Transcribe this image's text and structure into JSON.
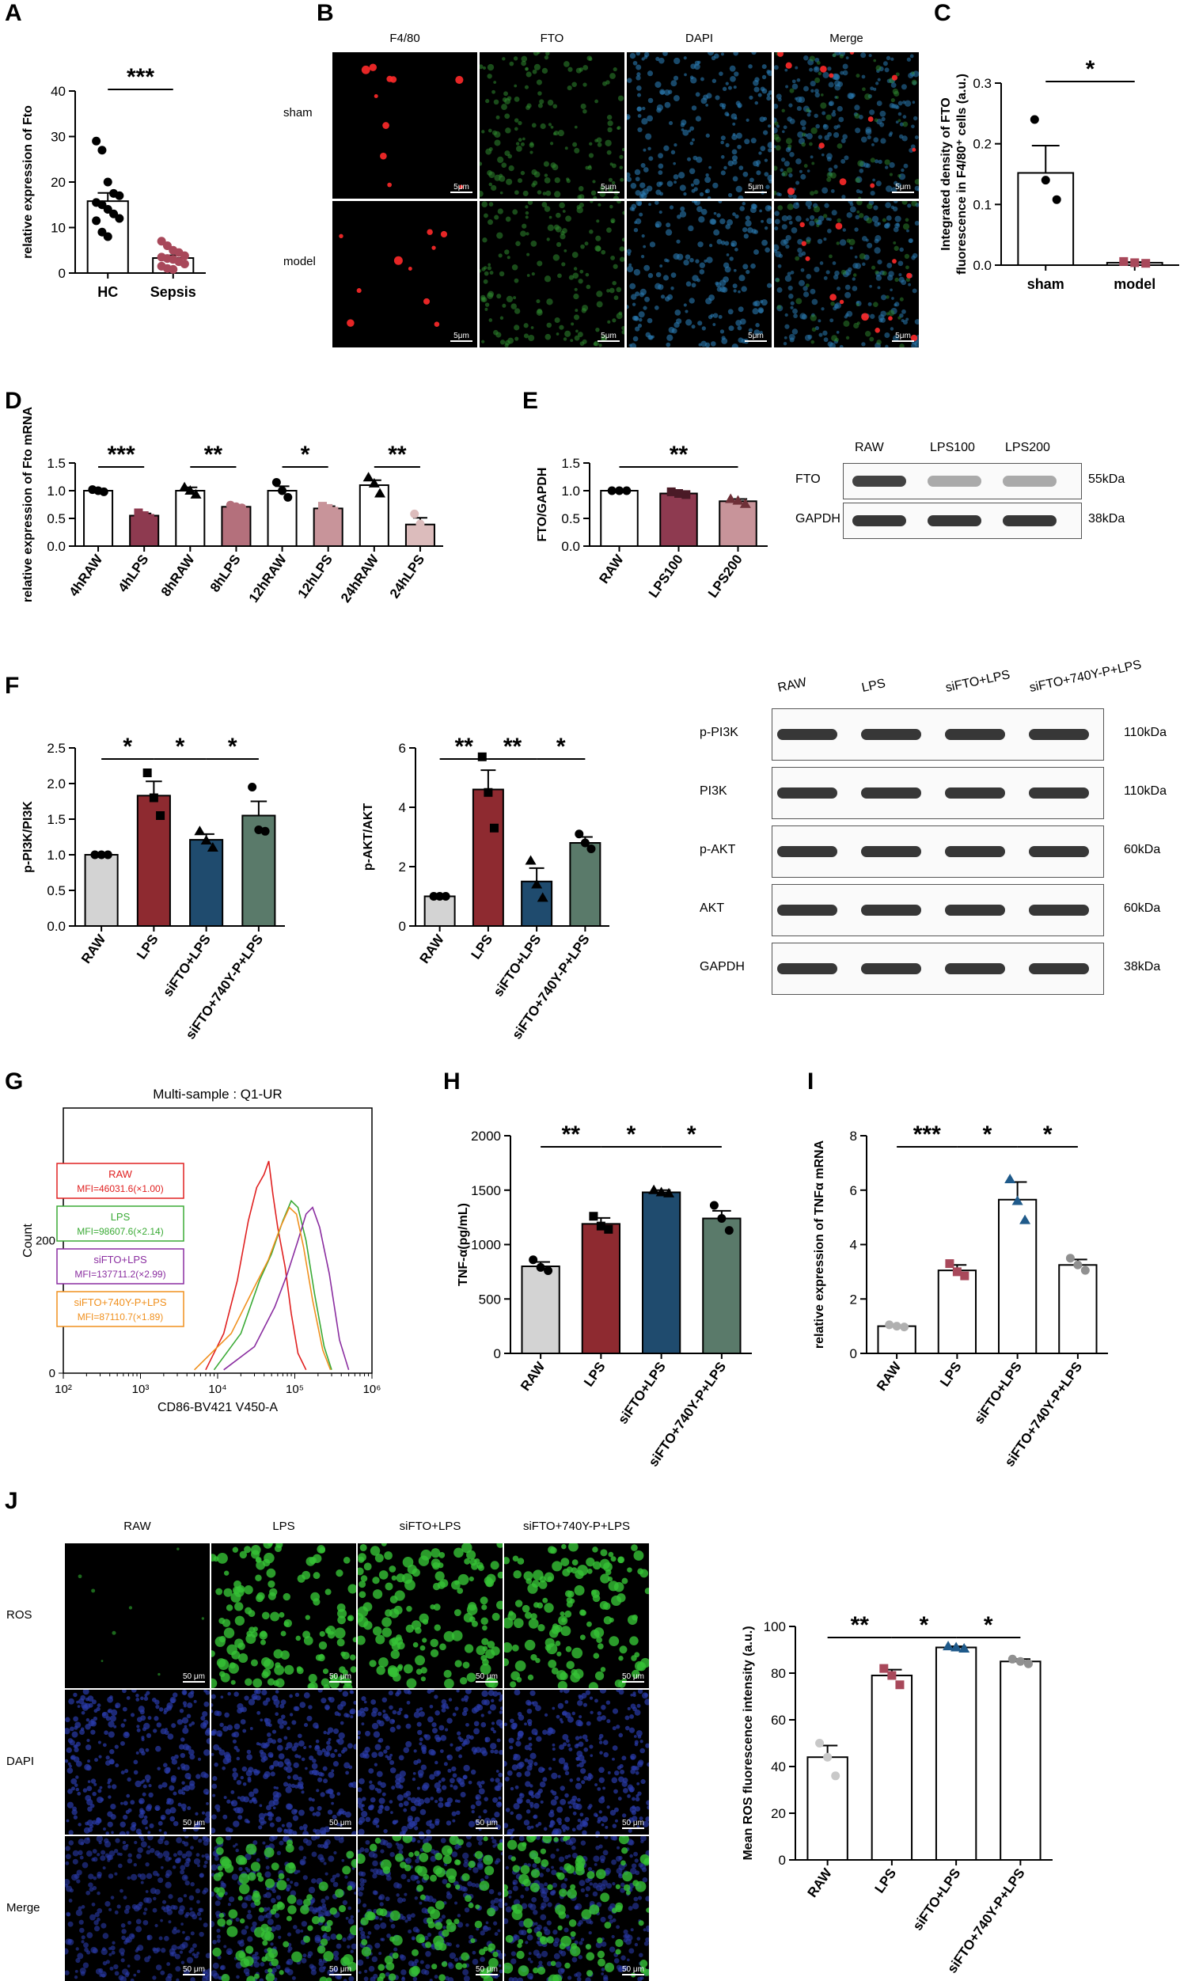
{
  "panels": {
    "A": "A",
    "B": "B",
    "C": "C",
    "D": "D",
    "E": "E",
    "F": "F",
    "G": "G",
    "H": "H",
    "I": "I",
    "J": "J"
  },
  "chart_data": [
    {
      "id": "A",
      "type": "bar",
      "title": "",
      "ylabel": "relative expression of Fto",
      "ylim": [
        0,
        40
      ],
      "yticks": [
        0,
        10,
        20,
        30,
        40
      ],
      "categories": [
        "HC",
        "Sepsis"
      ],
      "values": [
        15.8,
        3.3
      ],
      "errors": [
        1.8,
        0.6
      ],
      "bar_colors": [
        "#ffffff",
        "#ffffff"
      ],
      "point_colors": [
        "#000000",
        "#a8485a"
      ],
      "points": [
        [
          29,
          27,
          20,
          17.5,
          17,
          15.5,
          15,
          14,
          13,
          12,
          11.5,
          9,
          8
        ],
        [
          7,
          6,
          5,
          4.5,
          3.8,
          3.5,
          3.2,
          3,
          2.5,
          2,
          1.5,
          1,
          0.8
        ]
      ],
      "significance": [
        {
          "from": 0,
          "to": 1,
          "label": "***"
        }
      ],
      "rotate_ticks": false
    },
    {
      "id": "C",
      "type": "bar",
      "title": "",
      "ylabel": "Integrated density of FTO fluorescence in F4/80⁺ cells (a.u.)",
      "ylim": [
        0,
        0.3
      ],
      "yticks": [
        0.0,
        0.1,
        0.2,
        0.3
      ],
      "categories": [
        "sham",
        "model"
      ],
      "values": [
        0.152,
        0.004
      ],
      "errors": [
        0.045,
        0.001
      ],
      "bar_colors": [
        "#ffffff",
        "#ffffff"
      ],
      "point_colors": [
        "#000000",
        "#a8485a"
      ],
      "points": [
        [
          0.24,
          0.14,
          0.108
        ],
        [
          0.006,
          0.004,
          0.003
        ]
      ],
      "significance": [
        {
          "from": 0,
          "to": 1,
          "label": "*"
        }
      ],
      "rotate_ticks": false
    },
    {
      "id": "D",
      "type": "bar",
      "title": "",
      "ylabel": "relative expression of Fto mRNA",
      "ylim": [
        0,
        1.5
      ],
      "yticks": [
        0.0,
        0.5,
        1.0,
        1.5
      ],
      "categories": [
        "4hRAW",
        "4hLPS",
        "8hRAW",
        "8hLPS",
        "12hRAW",
        "12hLPS",
        "24hRAW",
        "24hLPS"
      ],
      "values": [
        1.0,
        0.55,
        1.0,
        0.71,
        1.0,
        0.68,
        1.1,
        0.39
      ],
      "errors": [
        0.02,
        0.04,
        0.06,
        0.03,
        0.08,
        0.04,
        0.09,
        0.12
      ],
      "bar_colors": [
        "#ffffff",
        "#8e3a50",
        "#ffffff",
        "#b4707c",
        "#ffffff",
        "#c8949a",
        "#ffffff",
        "#dcbcbc"
      ],
      "point_colors": [
        "#000000",
        "#8e3a50",
        "#000000",
        "#b4707c",
        "#000000",
        "#c8949a",
        "#000000",
        "#dcbcbc"
      ],
      "points": [
        [
          1.02,
          1.0,
          0.98
        ],
        [
          0.6,
          0.55,
          0.5
        ],
        [
          1.06,
          1.0,
          0.93
        ],
        [
          0.74,
          0.71,
          0.69
        ],
        [
          1.15,
          1.0,
          0.88
        ],
        [
          0.72,
          0.68,
          0.63
        ],
        [
          1.24,
          1.13,
          0.95
        ],
        [
          0.58,
          0.4,
          0.2
        ]
      ],
      "significance": [
        {
          "from": 0,
          "to": 1,
          "label": "***"
        },
        {
          "from": 2,
          "to": 3,
          "label": "**"
        },
        {
          "from": 4,
          "to": 5,
          "label": "*"
        },
        {
          "from": 6,
          "to": 7,
          "label": "**"
        }
      ],
      "rotate_ticks": true
    },
    {
      "id": "E",
      "type": "bar",
      "title": "",
      "ylabel": "FTO/GAPDH",
      "ylim": [
        0,
        1.5
      ],
      "yticks": [
        0.0,
        0.5,
        1.0,
        1.5
      ],
      "categories": [
        "RAW",
        "LPS100",
        "LPS200"
      ],
      "values": [
        1.0,
        0.95,
        0.81
      ],
      "errors": [
        0.0,
        0.03,
        0.04
      ],
      "bar_colors": [
        "#ffffff",
        "#8e3a50",
        "#c8949a"
      ],
      "point_colors": [
        "#000000",
        "#4a1a26",
        "#6e3038"
      ],
      "points": [
        [
          1.0,
          1.0,
          1.0
        ],
        [
          0.98,
          0.95,
          0.93
        ],
        [
          0.85,
          0.82,
          0.76
        ]
      ],
      "significance": [
        {
          "from": 0,
          "to": 2,
          "label": "**"
        }
      ],
      "rotate_ticks": true
    },
    {
      "id": "F1",
      "type": "bar",
      "title": "",
      "ylabel": "p-PI3K/PI3K",
      "ylim": [
        0,
        2.5
      ],
      "yticks": [
        0.0,
        0.5,
        1.0,
        1.5,
        2.0,
        2.5
      ],
      "categories": [
        "RAW",
        "LPS",
        "siFTO+LPS",
        "siFTO+740Y-P+LPS"
      ],
      "values": [
        1.0,
        1.83,
        1.21,
        1.55
      ],
      "errors": [
        0.0,
        0.2,
        0.08,
        0.2
      ],
      "bar_colors": [
        "#d3d3d3",
        "#8e2a30",
        "#1f4b6e",
        "#5a7a6a"
      ],
      "point_colors": [
        "#000000",
        "#000000",
        "#000000",
        "#000000"
      ],
      "points": [
        [
          1.0,
          1.0,
          1.0
        ],
        [
          2.15,
          1.8,
          1.55
        ],
        [
          1.33,
          1.2,
          1.1
        ],
        [
          1.95,
          1.35,
          1.33
        ]
      ],
      "significance": [
        {
          "from": 0,
          "to": 1,
          "label": "*"
        },
        {
          "from": 1,
          "to": 2,
          "label": "*"
        },
        {
          "from": 2,
          "to": 3,
          "label": "*"
        }
      ],
      "rotate_ticks": true
    },
    {
      "id": "F2",
      "type": "bar",
      "title": "",
      "ylabel": "p-AKT/AKT",
      "ylim": [
        0,
        6
      ],
      "yticks": [
        0,
        2,
        4,
        6
      ],
      "categories": [
        "RAW",
        "LPS",
        "siFTO+LPS",
        "siFTO+740Y-P+LPS"
      ],
      "values": [
        1.0,
        4.6,
        1.5,
        2.8
      ],
      "errors": [
        0.0,
        0.65,
        0.45,
        0.2
      ],
      "bar_colors": [
        "#d3d3d3",
        "#8e2a30",
        "#1f4b6e",
        "#5a7a6a"
      ],
      "point_colors": [
        "#000000",
        "#000000",
        "#000000",
        "#000000"
      ],
      "points": [
        [
          1.0,
          1.0,
          1.0
        ],
        [
          5.7,
          4.5,
          3.3
        ],
        [
          2.2,
          1.4,
          0.95
        ],
        [
          3.1,
          2.8,
          2.6
        ]
      ],
      "significance": [
        {
          "from": 0,
          "to": 1,
          "label": "**"
        },
        {
          "from": 1,
          "to": 2,
          "label": "**"
        },
        {
          "from": 2,
          "to": 3,
          "label": "*"
        }
      ],
      "rotate_ticks": true
    },
    {
      "id": "H",
      "type": "bar",
      "title": "",
      "ylabel": "TNF-α(pg/mL)",
      "ylim": [
        0,
        2000
      ],
      "yticks": [
        0,
        500,
        1000,
        1500,
        2000
      ],
      "categories": [
        "RAW",
        "LPS",
        "siFTO+LPS",
        "siFTO+740Y-P+LPS"
      ],
      "values": [
        800,
        1190,
        1480,
        1240
      ],
      "errors": [
        40,
        55,
        20,
        70
      ],
      "bar_colors": [
        "#d3d3d3",
        "#8e2a30",
        "#1f4b6e",
        "#5a7a6a"
      ],
      "point_colors": [
        "#000000",
        "#000000",
        "#000000",
        "#000000"
      ],
      "points": [
        [
          860,
          790,
          760
        ],
        [
          1260,
          1170,
          1140
        ],
        [
          1500,
          1480,
          1470
        ],
        [
          1360,
          1240,
          1130
        ]
      ],
      "significance": [
        {
          "from": 0,
          "to": 1,
          "label": "**"
        },
        {
          "from": 1,
          "to": 2,
          "label": "*"
        },
        {
          "from": 2,
          "to": 3,
          "label": "*"
        }
      ],
      "rotate_ticks": true
    },
    {
      "id": "I",
      "type": "bar",
      "title": "",
      "ylabel": "relative expression of TNFα mRNA",
      "ylim": [
        0,
        8
      ],
      "yticks": [
        0,
        2,
        4,
        6,
        8
      ],
      "categories": [
        "RAW",
        "LPS",
        "siFTO+LPS",
        "siFTO+740Y-P+LPS"
      ],
      "values": [
        1.0,
        3.05,
        5.65,
        3.25
      ],
      "errors": [
        0.03,
        0.2,
        0.65,
        0.2
      ],
      "bar_colors": [
        "#ffffff",
        "#ffffff",
        "#ffffff",
        "#ffffff"
      ],
      "point_colors": [
        "#b0b0b0",
        "#a8485a",
        "#1f5a8a",
        "#909090"
      ],
      "points": [
        [
          1.05,
          1.0,
          0.97
        ],
        [
          3.3,
          3.0,
          2.85
        ],
        [
          6.4,
          5.6,
          4.9
        ],
        [
          3.5,
          3.25,
          3.05
        ]
      ],
      "significance": [
        {
          "from": 0,
          "to": 1,
          "label": "***"
        },
        {
          "from": 1,
          "to": 2,
          "label": "*"
        },
        {
          "from": 2,
          "to": 3,
          "label": "*"
        }
      ],
      "rotate_ticks": true
    },
    {
      "id": "J",
      "type": "bar",
      "title": "",
      "ylabel": "Mean ROS fluorescence intensity (a.u.)",
      "ylim": [
        0,
        100
      ],
      "yticks": [
        0,
        20,
        40,
        60,
        80,
        100
      ],
      "categories": [
        "RAW",
        "LPS",
        "siFTO+LPS",
        "siFTO+740Y-P+LPS"
      ],
      "values": [
        44,
        79,
        91,
        85
      ],
      "errors": [
        5,
        2.5,
        0.5,
        1
      ],
      "bar_colors": [
        "#ffffff",
        "#ffffff",
        "#ffffff",
        "#ffffff"
      ],
      "point_colors": [
        "#c8c8c8",
        "#a8485a",
        "#1f5a8a",
        "#909090"
      ],
      "points": [
        [
          50,
          44,
          36
        ],
        [
          82,
          79,
          75
        ],
        [
          91.5,
          91,
          90.5
        ],
        [
          86,
          85,
          84
        ]
      ],
      "significance": [
        {
          "from": 0,
          "to": 1,
          "label": "**"
        },
        {
          "from": 1,
          "to": 2,
          "label": "*"
        },
        {
          "from": 2,
          "to": 3,
          "label": "*"
        }
      ],
      "rotate_ticks": true
    },
    {
      "id": "G",
      "type": "line",
      "title": "Multi-sample : Q1-UR",
      "xlabel": "CD86-BV421 V450-A",
      "ylabel": "Count",
      "x_scale": "log",
      "xlim": [
        100,
        1000000
      ],
      "xticks": [
        "10²",
        "10³",
        "10⁴",
        "10⁵",
        "10⁶"
      ],
      "ylim": [
        0,
        400
      ],
      "yticks": [
        0,
        200
      ],
      "legend": [
        {
          "name": "RAW",
          "mfi": "MFI=46031.6(×1.00)",
          "color": "#e02020"
        },
        {
          "name": "LPS",
          "mfi": "MFI=98607.6(×2.14)",
          "color": "#3aaa35"
        },
        {
          "name": "siFTO+LPS",
          "mfi": "MFI=137711.2(×2.99)",
          "color": "#8a2da0"
        },
        {
          "name": "siFTO+740Y-P+LPS",
          "mfi": "MFI=87110.7(×1.89)",
          "color": "#f0901e"
        }
      ],
      "series": [
        {
          "name": "RAW",
          "color": "#e02020",
          "x": [
            7000,
            12000,
            18000,
            25000,
            32000,
            40000,
            46000,
            52000,
            60000,
            75000,
            90000,
            110000,
            140000
          ],
          "y": [
            5,
            60,
            140,
            230,
            280,
            300,
            320,
            270,
            220,
            160,
            90,
            30,
            5
          ]
        },
        {
          "name": "LPS",
          "color": "#3aaa35",
          "x": [
            9000,
            20000,
            35000,
            50000,
            70000,
            90000,
            110000,
            140000,
            180000,
            240000,
            300000
          ],
          "y": [
            5,
            60,
            140,
            180,
            230,
            260,
            250,
            200,
            120,
            40,
            5
          ]
        },
        {
          "name": "siFTO+LPS",
          "color": "#8a2da0",
          "x": [
            12000,
            30000,
            55000,
            80000,
            110000,
            140000,
            170000,
            210000,
            280000,
            380000,
            500000
          ],
          "y": [
            5,
            40,
            100,
            150,
            200,
            240,
            250,
            220,
            150,
            50,
            5
          ]
        },
        {
          "name": "siFTO+740Y-P+LPS",
          "color": "#f0901e",
          "x": [
            5000,
            15000,
            30000,
            45000,
            65000,
            85000,
            105000,
            130000,
            170000,
            230000,
            290000
          ],
          "y": [
            5,
            60,
            130,
            170,
            220,
            250,
            240,
            190,
            110,
            35,
            5
          ]
        }
      ]
    }
  ],
  "panel_B": {
    "columns": [
      "F4/80",
      "FTO",
      "DAPI",
      "Merge"
    ],
    "rows": [
      "sham",
      "model"
    ],
    "scale": "5μm"
  },
  "panel_J_images": {
    "columns": [
      "RAW",
      "LPS",
      "siFTO+LPS",
      "siFTO+740Y-P+LPS"
    ],
    "rows": [
      "ROS",
      "DAPI",
      "Merge"
    ],
    "scale": "50 μm"
  },
  "blot_E": {
    "lanes": [
      "RAW",
      "LPS100",
      "LPS200"
    ],
    "rows": [
      {
        "name": "FTO",
        "size": "55kDa"
      },
      {
        "name": "GAPDH",
        "size": "38kDa"
      }
    ]
  },
  "blot_F": {
    "lanes": [
      "RAW",
      "LPS",
      "siFTO+LPS",
      "siFTO+740Y-P+LPS"
    ],
    "rows": [
      {
        "name": "p-PI3K",
        "size": "110kDa"
      },
      {
        "name": "PI3K",
        "size": "110kDa"
      },
      {
        "name": "p-AKT",
        "size": "60kDa"
      },
      {
        "name": "AKT",
        "size": "60kDa"
      },
      {
        "name": "GAPDH",
        "size": "38kDa"
      }
    ]
  }
}
